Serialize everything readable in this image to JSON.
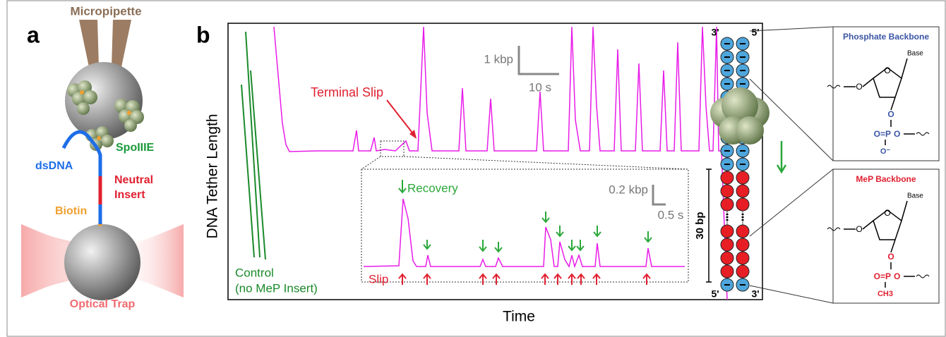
{
  "panel_a": {
    "label": "a",
    "micropipette": "Micropipette",
    "protein": "SpoIIIE",
    "dna": "dsDNA",
    "insert": [
      "Neutral",
      "Insert"
    ],
    "biotin": "Biotin",
    "trap": "Optical Trap"
  },
  "panel_b": {
    "label": "b",
    "y_label": "DNA Tether Length",
    "x_label": "Time",
    "terminal_slip": "Terminal Slip",
    "scale_y": "1 kbp",
    "scale_x": "10 s",
    "inset": {
      "scale_y": "0.2 kbp",
      "scale_x": "0.5 s",
      "recovery": "Recovery",
      "slip": "Slip"
    },
    "control": [
      "Control",
      "(no MeP Insert)"
    ],
    "strand": {
      "top_left": "3'",
      "top_right": "5'",
      "bottom_left": "5'",
      "bottom_right": "3'",
      "length": "30 bp"
    },
    "phosphate": {
      "title": "Phosphate Backbone",
      "base": "Base",
      "ring_o": "O",
      "sugar_o": "O",
      "link_o": "O",
      "group": "O=P",
      "ester_o": "O",
      "minus": "O⁻"
    },
    "mep": {
      "title": "MeP Backbone",
      "base": "Base",
      "ring_o": "O",
      "sugar_o": "O",
      "link_o": "O",
      "group": "O=P",
      "ester_o": "O",
      "methyl": "CH3"
    }
  }
}
